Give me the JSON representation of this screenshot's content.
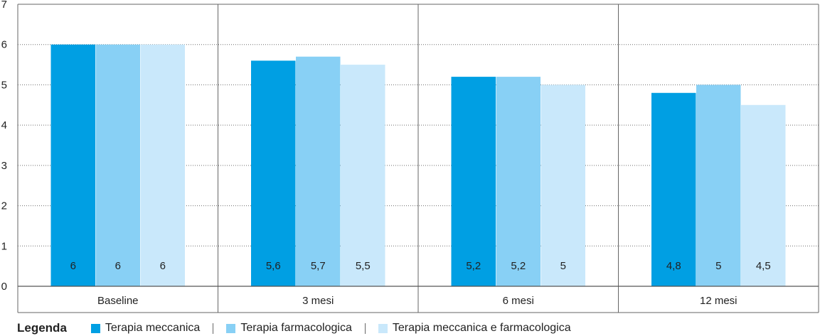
{
  "chart_data": {
    "type": "bar",
    "categories": [
      "Baseline",
      "3 mesi",
      "6 mesi",
      "12 mesi"
    ],
    "series": [
      {
        "name": "Terapia meccanica",
        "color": "#009fe3",
        "values": [
          6,
          5.6,
          5.2,
          4.8
        ],
        "labels": [
          "6",
          "5,6",
          "5,2",
          "4,8"
        ]
      },
      {
        "name": "Terapia farmacologica",
        "color": "#88d0f5",
        "values": [
          6,
          5.7,
          5.2,
          5
        ],
        "labels": [
          "6",
          "5,7",
          "5,2",
          "5"
        ]
      },
      {
        "name": "Terapia meccanica e farmacologica",
        "color": "#c9e8fb",
        "values": [
          6,
          5.5,
          5,
          4.5
        ],
        "labels": [
          "6",
          "5,5",
          "5",
          "4,5"
        ]
      }
    ],
    "ylim": [
      0,
      7
    ],
    "yticks": [
      "0",
      "1",
      "2",
      "3",
      "4",
      "5",
      "6",
      "7"
    ],
    "grid": true,
    "legend_title": "Legenda",
    "legend_position": "bottom-left"
  }
}
